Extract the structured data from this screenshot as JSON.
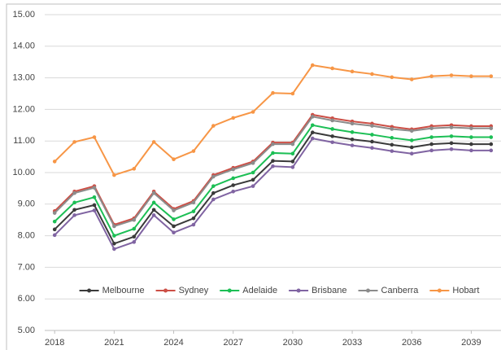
{
  "chart_data": {
    "type": "line",
    "x": [
      2018,
      2019,
      2020,
      2021,
      2022,
      2023,
      2024,
      2025,
      2026,
      2027,
      2028,
      2029,
      2030,
      2031,
      2032,
      2033,
      2034,
      2035,
      2036,
      2037,
      2038,
      2039,
      2040
    ],
    "series": [
      {
        "name": "Melbourne",
        "color": "#3a3a3a",
        "values": [
          8.2,
          8.82,
          8.97,
          7.75,
          7.97,
          8.82,
          8.3,
          8.55,
          9.35,
          9.6,
          9.77,
          10.37,
          10.35,
          11.27,
          11.15,
          11.05,
          10.98,
          10.88,
          10.8,
          10.9,
          10.93,
          10.9,
          10.9
        ]
      },
      {
        "name": "Sydney",
        "color": "#cc4f46",
        "values": [
          8.78,
          9.4,
          9.57,
          8.35,
          8.55,
          9.4,
          8.85,
          9.1,
          9.92,
          10.15,
          10.35,
          10.95,
          10.95,
          11.83,
          11.72,
          11.62,
          11.55,
          11.45,
          11.37,
          11.47,
          11.5,
          11.47,
          11.47
        ]
      },
      {
        "name": "Adelaide",
        "color": "#1cbf55",
        "values": [
          8.45,
          9.05,
          9.22,
          8.0,
          8.22,
          9.05,
          8.52,
          8.77,
          9.57,
          9.82,
          10.0,
          10.62,
          10.6,
          11.5,
          11.38,
          11.28,
          11.2,
          11.1,
          11.02,
          11.12,
          11.15,
          11.12,
          11.12
        ]
      },
      {
        "name": "Brisbane",
        "color": "#8064a2",
        "values": [
          8.02,
          8.65,
          8.8,
          7.58,
          7.8,
          8.65,
          8.1,
          8.35,
          9.15,
          9.4,
          9.57,
          10.2,
          10.17,
          11.08,
          10.96,
          10.86,
          10.78,
          10.68,
          10.6,
          10.7,
          10.74,
          10.7,
          10.7
        ]
      },
      {
        "name": "Canberra",
        "color": "#8c8c8c",
        "values": [
          8.72,
          9.35,
          9.52,
          8.3,
          8.5,
          9.35,
          8.8,
          9.05,
          9.87,
          10.1,
          10.3,
          10.9,
          10.9,
          11.77,
          11.65,
          11.55,
          11.48,
          11.38,
          11.32,
          11.4,
          11.43,
          11.4,
          11.4
        ]
      },
      {
        "name": "Hobart",
        "color": "#f79646",
        "values": [
          10.35,
          10.97,
          11.12,
          9.92,
          10.12,
          10.97,
          10.42,
          10.68,
          11.48,
          11.73,
          11.92,
          12.52,
          12.5,
          13.4,
          13.3,
          13.2,
          13.12,
          13.02,
          12.95,
          13.05,
          13.08,
          13.05,
          13.05
        ]
      }
    ],
    "xlim": [
      2017.5,
      2040.5
    ],
    "xticks": [
      2018,
      2021,
      2024,
      2027,
      2030,
      2033,
      2036,
      2039
    ],
    "ylim": [
      5,
      15
    ],
    "yticks": [
      {
        "value": 5,
        "label": "5.00"
      },
      {
        "value": 6,
        "label": "6.00"
      },
      {
        "value": 7,
        "label": "7.00"
      },
      {
        "value": 8,
        "label": "8.00"
      },
      {
        "value": 9,
        "label": "9.00"
      },
      {
        "value": 10,
        "label": "10.00"
      },
      {
        "value": 11,
        "label": "11.00"
      },
      {
        "value": 12,
        "label": "12.00"
      },
      {
        "value": 13,
        "label": "13.00"
      },
      {
        "value": 14,
        "label": "14.00"
      },
      {
        "value": 15,
        "label": "15.00"
      }
    ],
    "grid": true,
    "legend": "bottom"
  }
}
